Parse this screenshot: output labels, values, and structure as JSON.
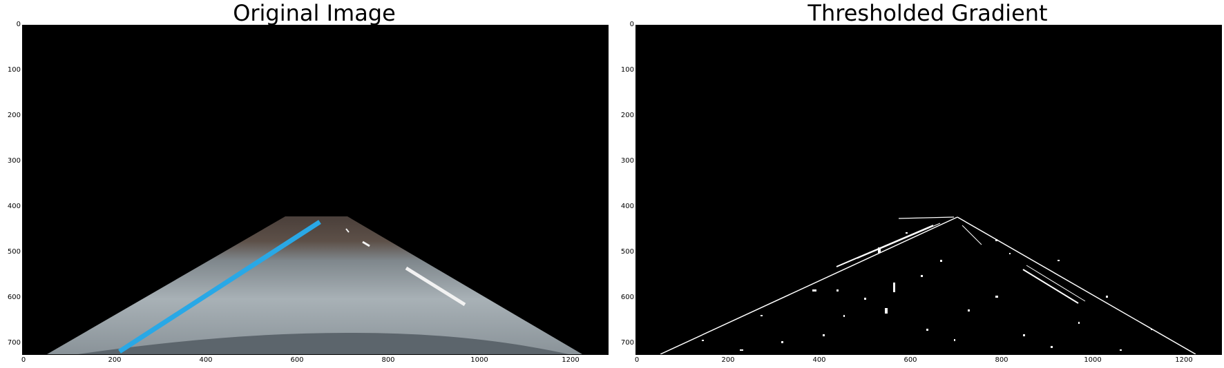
{
  "panels": [
    {
      "title": "Original Image",
      "xticks": [
        "0",
        "200",
        "400",
        "600",
        "800",
        "1000",
        "1200"
      ],
      "yticks": [
        "0",
        "100",
        "200",
        "300",
        "400",
        "500",
        "600",
        "700"
      ]
    },
    {
      "title": "Thresholded Gradient",
      "xticks": [
        "0",
        "200",
        "400",
        "600",
        "800",
        "1000",
        "1200"
      ],
      "yticks": [
        "0",
        "100",
        "200",
        "300",
        "400",
        "500",
        "600",
        "700"
      ]
    }
  ],
  "colors": {
    "lane_line_left": "#29a8e6",
    "road_surface": "#8e969c",
    "background": "#000000",
    "edges": "#ffffff"
  }
}
